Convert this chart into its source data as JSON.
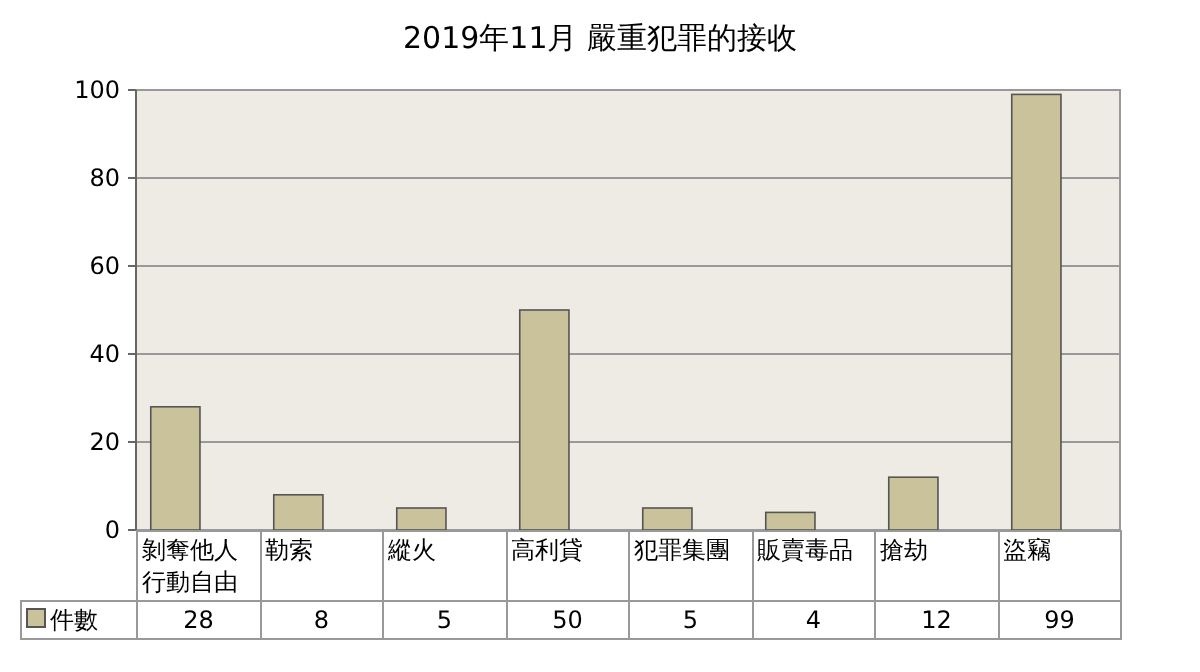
{
  "chart_data": {
    "type": "bar",
    "title": "2019年11月 嚴重犯罪的接收",
    "categories": [
      "剝奪他人行動自由",
      "勒索",
      "縱火",
      "高利貸",
      "犯罪集團",
      "販賣毒品",
      "搶劫",
      "盜竊"
    ],
    "series": [
      {
        "name": "件數",
        "color": "#c9c29a",
        "values": [
          28,
          8,
          5,
          50,
          5,
          4,
          12,
          99
        ]
      }
    ],
    "ylim": [
      0,
      100
    ],
    "yticks": [
      0,
      20,
      40,
      60,
      80,
      100
    ],
    "grid": "y",
    "data_labels": true,
    "legend": "bottom left"
  }
}
